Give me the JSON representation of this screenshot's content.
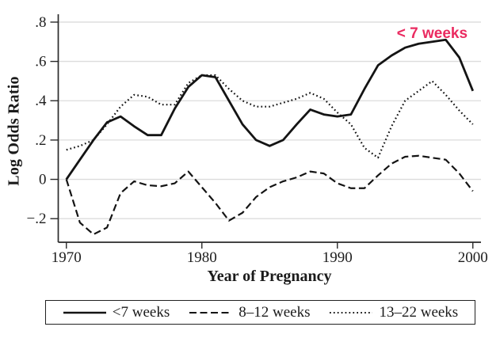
{
  "figure": {
    "background": "#ffffff",
    "line_color": "#141414",
    "grid_color": "#dcdcdc",
    "axis_color": "#2a2a2a",
    "text_color": "#1e1e1e"
  },
  "chart_data": {
    "type": "line",
    "title": "",
    "xlabel": "Year of Pregnancy",
    "ylabel": "Log Odds Ratio",
    "grid": true,
    "legend_position": "bottom",
    "xlim": [
      1969.4,
      2000.6
    ],
    "ylim": [
      -0.32,
      0.84
    ],
    "x_ticks": [
      1970,
      1980,
      1990,
      2000
    ],
    "y_ticks": [
      -0.2,
      0,
      0.2,
      0.4,
      0.6,
      0.8
    ],
    "y_tick_labels": [
      "−.2",
      "0",
      ".2",
      ".4",
      ".6",
      ".8"
    ],
    "x": [
      1970,
      1971,
      1972,
      1973,
      1974,
      1975,
      1976,
      1977,
      1978,
      1979,
      1980,
      1981,
      1982,
      1983,
      1984,
      1985,
      1986,
      1987,
      1988,
      1989,
      1990,
      1991,
      1992,
      1993,
      1994,
      1995,
      1996,
      1997,
      1998,
      1999,
      2000
    ],
    "series": [
      {
        "name": "<7 weeks",
        "style": "solid",
        "values": [
          0,
          0.1,
          0.2,
          0.29,
          0.32,
          0.27,
          0.225,
          0.225,
          0.36,
          0.47,
          0.53,
          0.52,
          0.4,
          0.28,
          0.2,
          0.17,
          0.2,
          0.28,
          0.355,
          0.33,
          0.32,
          0.33,
          0.46,
          0.58,
          0.63,
          0.67,
          0.69,
          0.7,
          0.71,
          0.62,
          0.45
        ]
      },
      {
        "name": "8–12 weeks",
        "style": "dashed",
        "values": [
          0,
          -0.22,
          -0.28,
          -0.245,
          -0.07,
          -0.01,
          -0.03,
          -0.035,
          -0.02,
          0.04,
          -0.04,
          -0.12,
          -0.21,
          -0.17,
          -0.09,
          -0.04,
          -0.01,
          0.01,
          0.04,
          0.03,
          -0.02,
          -0.045,
          -0.045,
          0.02,
          0.08,
          0.115,
          0.12,
          0.11,
          0.1,
          0.03,
          -0.06
        ]
      },
      {
        "name": "13–22 weeks",
        "style": "dotted",
        "values": [
          0.15,
          0.17,
          0.2,
          0.28,
          0.37,
          0.43,
          0.42,
          0.38,
          0.38,
          0.49,
          0.53,
          0.53,
          0.46,
          0.4,
          0.37,
          0.37,
          0.39,
          0.41,
          0.44,
          0.41,
          0.34,
          0.28,
          0.16,
          0.11,
          0.27,
          0.4,
          0.45,
          0.5,
          0.43,
          0.35,
          0.28
        ]
      }
    ],
    "annotation": {
      "text": "< 7 weeks",
      "x": 1997,
      "y": 0.74,
      "color": "#ea2a60"
    }
  }
}
